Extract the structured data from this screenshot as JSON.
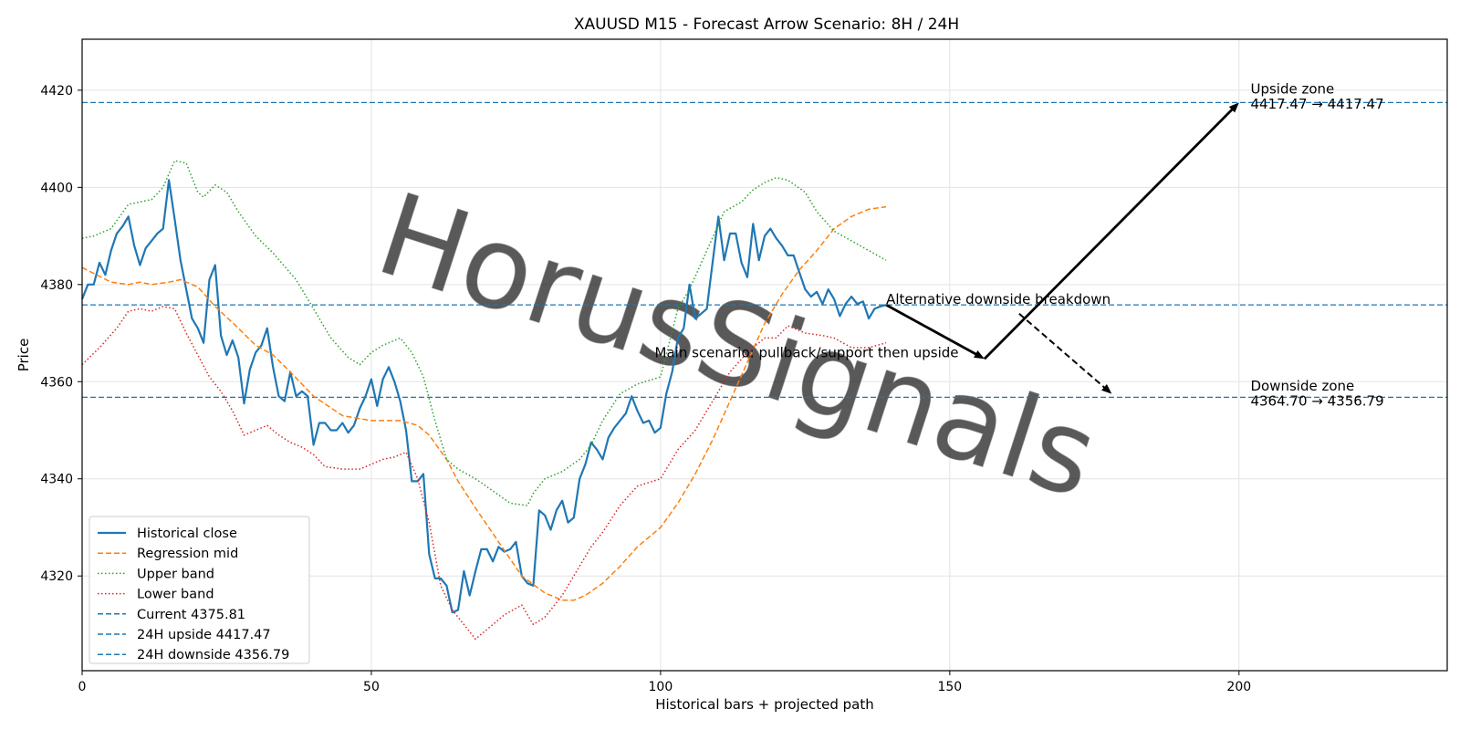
{
  "chart_data": {
    "type": "line",
    "title": "XAUUSD M15 - Forecast Arrow Scenario: 8H / 24H",
    "xlabel": "Historical bars + projected path",
    "ylabel": "Price",
    "xlim": [
      0,
      236
    ],
    "ylim": [
      4300.5,
      4430.5
    ],
    "xticks": [
      "0",
      "50",
      "100",
      "150",
      "200"
    ],
    "yticks": [
      "4320",
      "4340",
      "4360",
      "4380",
      "4400",
      "4420"
    ],
    "grid": true,
    "legend_position": "lower-left",
    "watermark": "HorusSignals",
    "series": [
      {
        "name": "Historical close",
        "style": "solid",
        "color": "#1f77b4",
        "x": [
          0,
          1,
          2,
          3,
          4,
          5,
          6,
          7,
          8,
          9,
          10,
          11,
          12,
          13,
          14,
          15,
          16,
          17,
          18,
          19,
          20,
          21,
          22,
          23,
          24,
          25,
          26,
          27,
          28,
          29,
          30,
          31,
          32,
          33,
          34,
          35,
          36,
          37,
          38,
          39,
          40,
          41,
          42,
          43,
          44,
          45,
          46,
          47,
          48,
          49,
          50,
          51,
          52,
          53,
          54,
          55,
          56,
          57,
          58,
          59,
          60,
          61,
          62,
          63,
          64,
          65,
          66,
          67,
          68,
          69,
          70,
          71,
          72,
          73,
          74,
          75,
          76,
          77,
          78,
          79,
          80,
          81,
          82,
          83,
          84,
          85,
          86,
          87,
          88,
          89,
          90,
          91,
          92,
          93,
          94,
          95,
          96,
          97,
          98,
          99,
          100,
          101,
          102,
          103,
          104,
          105,
          106,
          107,
          108,
          109,
          110,
          111,
          112,
          113,
          114,
          115,
          116,
          117,
          118,
          119,
          120,
          121,
          122,
          123,
          124,
          125,
          126,
          127,
          128,
          129,
          130,
          131,
          132,
          133,
          134,
          135,
          136,
          137,
          138,
          139
        ],
        "y": [
          4377,
          4380,
          4380,
          4384.5,
          4382,
          4387,
          4390.5,
          4392,
          4394,
          4388,
          4384,
          4387.5,
          4389,
          4390.5,
          4391.5,
          4401.5,
          4393.5,
          4385,
          4379,
          4373,
          4371,
          4368,
          4381,
          4384,
          4369.5,
          4365.5,
          4368.5,
          4365,
          4355.5,
          4362.5,
          4366,
          4367.5,
          4371,
          4363,
          4357,
          4356,
          4362,
          4357,
          4358,
          4357,
          4347,
          4351.5,
          4351.5,
          4350,
          4350,
          4351.5,
          4349.5,
          4351,
          4354.5,
          4357,
          4360.5,
          4355,
          4360.5,
          4363,
          4360,
          4356,
          4350,
          4339.5,
          4339.5,
          4341,
          4324.5,
          4319.5,
          4319.5,
          4318,
          4312.5,
          4313,
          4321,
          4316,
          4321,
          4325.5,
          4325.5,
          4323,
          4326,
          4325,
          4325.5,
          4327,
          4320,
          4318.5,
          4318,
          4333.5,
          4332.5,
          4329.5,
          4333.5,
          4335.5,
          4331,
          4332,
          4340,
          4343,
          4347.5,
          4346,
          4344,
          4348.5,
          4350.5,
          4352,
          4353.5,
          4357,
          4354,
          4351.5,
          4352,
          4349.5,
          4350.5,
          4357.5,
          4362,
          4369,
          4371,
          4380,
          4373,
          4374,
          4375,
          4384.5,
          4394,
          4385,
          4390.5,
          4390.5,
          4384.5,
          4381.5,
          4392.5,
          4385,
          4390,
          4391.5,
          4389.5,
          4388,
          4386,
          4386,
          4382.5,
          4379,
          4377.5,
          4378.5,
          4376,
          4379,
          4377,
          4373.5,
          4376,
          4377.5,
          4376,
          4376.5,
          4373,
          4375,
          4375.5,
          4375.8
        ]
      },
      {
        "name": "Regression mid",
        "style": "dashed",
        "color": "#ff7f0e",
        "x": [
          0,
          5,
          8,
          10,
          12,
          15,
          17,
          20,
          23,
          27,
          30,
          33,
          36,
          40,
          45,
          50,
          55,
          58,
          60,
          63,
          65,
          68,
          72,
          76,
          80,
          83,
          85,
          87,
          90,
          93,
          96,
          100,
          103,
          106,
          109,
          112,
          115,
          118,
          121,
          124,
          127,
          130,
          133,
          136,
          139
        ],
        "y": [
          4383.5,
          4380.5,
          4380,
          4380.5,
          4380,
          4380.5,
          4381,
          4379.5,
          4375.5,
          4371,
          4367.5,
          4365.5,
          4362,
          4357,
          4353,
          4352,
          4352,
          4351,
          4349,
          4344,
          4339.5,
          4334,
          4327,
          4320,
          4316.5,
          4315,
          4315,
          4316,
          4318.5,
          4322,
          4326,
          4330,
          4335,
          4341,
          4348,
          4356,
          4364,
          4372,
          4378,
          4383,
          4387,
          4391.5,
          4394,
          4395.5,
          4396
        ]
      },
      {
        "name": "Upper band",
        "style": "dotted",
        "color": "#2ca02c",
        "x": [
          0,
          2,
          5,
          8,
          10,
          12,
          14,
          16,
          18,
          20,
          21,
          23,
          25,
          27,
          30,
          33,
          37,
          40,
          43,
          46,
          48,
          50,
          52,
          55,
          57,
          59,
          61,
          63,
          65,
          68,
          71,
          74,
          77,
          78,
          80,
          83,
          86,
          88,
          90,
          93,
          96,
          100,
          103,
          105,
          108,
          111,
          114,
          116,
          118,
          120,
          122,
          125,
          127,
          130,
          133,
          136,
          139
        ],
        "y": [
          4389.5,
          4390,
          4391.5,
          4396.5,
          4397,
          4397.5,
          4400,
          4405.5,
          4405,
          4399,
          4398,
          4400.5,
          4399,
          4395,
          4390,
          4386.5,
          4381,
          4375,
          4369,
          4365,
          4363.5,
          4366,
          4367.5,
          4369,
          4366,
          4361,
          4352,
          4344,
          4342,
          4340,
          4337.5,
          4335,
          4334.5,
          4337,
          4340,
          4341.5,
          4344,
          4347,
          4352,
          4357.5,
          4359.5,
          4361,
          4375,
          4379,
          4387,
          4395,
          4397,
          4399.5,
          4401,
          4402,
          4401.5,
          4399,
          4395,
          4391,
          4389,
          4387,
          4385
        ]
      },
      {
        "name": "Lower band",
        "style": "dotted",
        "color": "#d62728",
        "x": [
          0,
          3,
          6,
          8,
          10,
          12,
          14,
          16,
          18,
          20,
          22,
          24,
          26,
          28,
          30,
          32,
          34,
          36,
          38,
          40,
          42,
          45,
          48,
          50,
          52,
          54,
          56,
          58,
          60,
          62,
          64,
          66,
          68,
          70,
          73,
          76,
          78,
          80,
          83,
          85,
          88,
          90,
          93,
          96,
          100,
          103,
          106,
          108,
          110,
          112,
          115,
          118,
          120,
          122,
          125,
          128,
          130,
          133,
          136,
          139
        ],
        "y": [
          4363.5,
          4367,
          4371,
          4374.5,
          4375,
          4374.5,
          4375.5,
          4375,
          4370,
          4365.5,
          4361,
          4358,
          4354,
          4349,
          4350,
          4351,
          4349,
          4347.5,
          4346.5,
          4345,
          4342.5,
          4342,
          4342,
          4343,
          4344,
          4344.5,
          4345.5,
          4340,
          4331,
          4318,
          4313,
          4310,
          4307,
          4309,
          4312,
          4314,
          4310,
          4311.5,
          4316,
          4320,
          4326,
          4329,
          4334.5,
          4338.5,
          4340,
          4346,
          4350,
          4354,
          4358,
          4362,
          4366,
          4369,
          4369,
          4371.5,
          4370,
          4369.5,
          4369,
          4367,
          4367,
          4368
        ]
      }
    ],
    "reference_lines": [
      {
        "name": "Current 4375.81",
        "value": 4375.81,
        "style": "dashed",
        "color": "#1f77b4"
      },
      {
        "name": "24H upside 4417.47",
        "value": 4417.47,
        "style": "dashed",
        "color": "#1f77b4"
      },
      {
        "name": "24H downside 4356.79",
        "value": 4356.79,
        "style": "dashed",
        "color": "#1f77b4"
      }
    ],
    "arrows": [
      {
        "name": "main-pullback",
        "from": [
          139,
          4375.81
        ],
        "to": [
          156,
          4364.7
        ],
        "style": "solid"
      },
      {
        "name": "main-upside",
        "from": [
          156,
          4364.7
        ],
        "to": [
          200,
          4417.47
        ],
        "style": "solid"
      },
      {
        "name": "alternative-downside",
        "from": [
          162,
          4374
        ],
        "to": [
          178,
          4357.5
        ],
        "style": "dashed"
      }
    ],
    "annotations": {
      "alternative": {
        "text": "Alternative downside breakdown",
        "x": 139,
        "y": 4376
      },
      "main": {
        "text": "Main scenario: pullback/support then upside",
        "x": 99,
        "y": 4365
      },
      "upside_zone_title": {
        "text": "Upside zone",
        "x": 202,
        "y": 4419.3
      },
      "upside_zone_range": {
        "text": "4417.47 → 4417.47",
        "x": 202,
        "y": 4416.2
      },
      "downside_zone_title": {
        "text": "Downside zone",
        "x": 202,
        "y": 4358.2
      },
      "downside_zone_range": {
        "text": "4364.70 → 4356.79",
        "x": 202,
        "y": 4355.1
      }
    }
  }
}
